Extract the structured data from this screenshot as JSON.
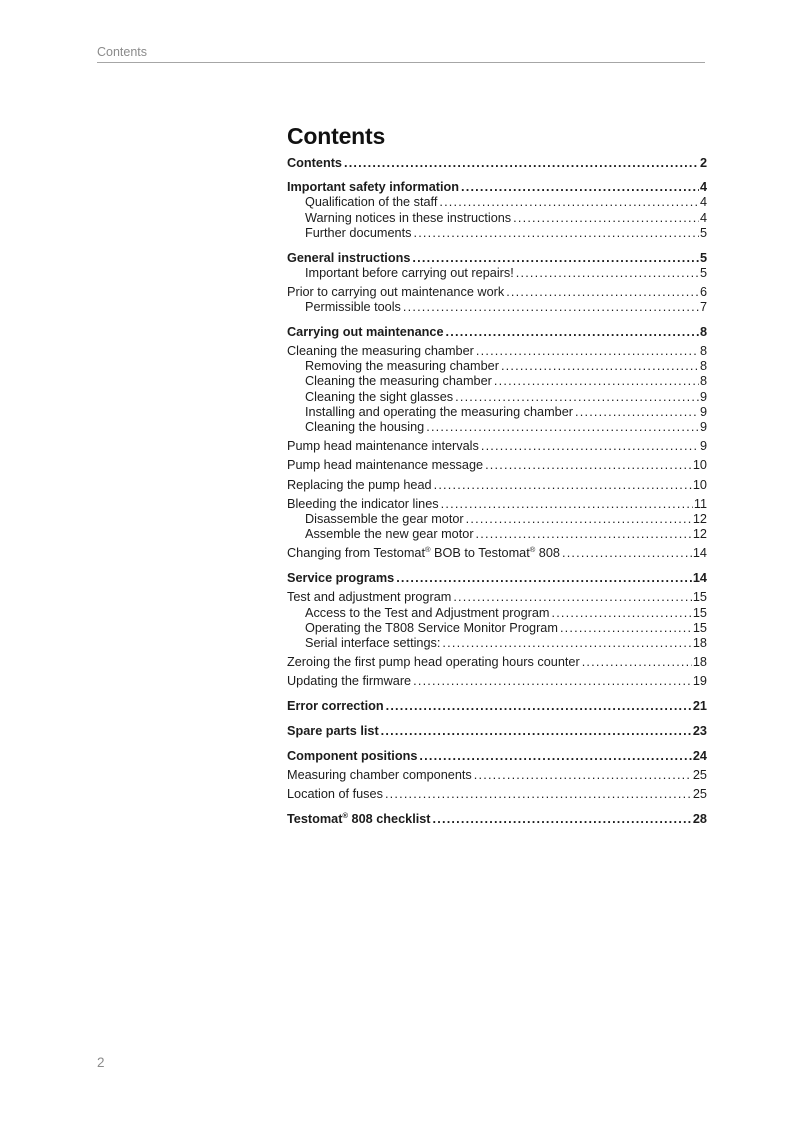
{
  "header": {
    "title": "Contents"
  },
  "title": "Contents",
  "footer": {
    "page_number": "2"
  },
  "colors": {
    "text": "#1c1c1c",
    "muted_gray": "#8b8b8b",
    "header_rule": "#a6a6a6",
    "background": "#ffffff"
  },
  "toc": {
    "entries": [
      {
        "label": "Contents",
        "page": "2",
        "style": "chapter"
      },
      {
        "label": "Important safety information",
        "page": "4",
        "style": "chapter"
      },
      {
        "label": "Qualification of the staff",
        "page": "4",
        "style": "sub"
      },
      {
        "label": "Warning notices in these instructions",
        "page": "4",
        "style": "sub"
      },
      {
        "label": "Further documents",
        "page": "5",
        "style": "sub"
      },
      {
        "label": "General instructions",
        "page": "5",
        "style": "chapter"
      },
      {
        "label": "Important before carrying out repairs!",
        "page": "5",
        "style": "sub"
      },
      {
        "label": "Prior to carrying out maintenance work",
        "page": "6",
        "style": "section"
      },
      {
        "label": "Permissible tools",
        "page": "7",
        "style": "sub"
      },
      {
        "label": "Carrying out maintenance",
        "page": "8",
        "style": "chapter"
      },
      {
        "label": "Cleaning the measuring chamber",
        "page": "8",
        "style": "section"
      },
      {
        "label": "Removing the measuring chamber",
        "page": "8",
        "style": "sub"
      },
      {
        "label": "Cleaning the measuring chamber",
        "page": "8",
        "style": "sub"
      },
      {
        "label": "Cleaning the sight glasses",
        "page": "9",
        "style": "sub"
      },
      {
        "label": "Installing and operating the measuring chamber",
        "page": "9",
        "style": "sub"
      },
      {
        "label": "Cleaning the housing",
        "page": "9",
        "style": "sub"
      },
      {
        "label": "Pump head maintenance intervals",
        "page": "9",
        "style": "section"
      },
      {
        "label": "Pump head maintenance message",
        "page": "10",
        "style": "section"
      },
      {
        "label": "Replacing the pump head",
        "page": "10",
        "style": "section"
      },
      {
        "label": "Bleeding the indicator lines",
        "page": "11",
        "style": "section"
      },
      {
        "label": "Disassemble the gear motor",
        "page": "12",
        "style": "sub"
      },
      {
        "label": "Assemble the new gear motor",
        "page": "12",
        "style": "sub"
      },
      {
        "label": "Changing from Testomat® BOB to Testomat® 808",
        "page": "14",
        "style": "section"
      },
      {
        "label": "Service programs",
        "page": "14",
        "style": "chapter"
      },
      {
        "label": "Test and adjustment program",
        "page": "15",
        "style": "section"
      },
      {
        "label": "Access to the Test and Adjustment program",
        "page": "15",
        "style": "sub"
      },
      {
        "label": "Operating the T808 Service Monitor Program",
        "page": "15",
        "style": "sub"
      },
      {
        "label": "Serial interface settings:",
        "page": "18",
        "style": "sub"
      },
      {
        "label": "Zeroing the first pump head operating hours counter",
        "page": "18",
        "style": "section"
      },
      {
        "label": "Updating the firmware",
        "page": "19",
        "style": "section"
      },
      {
        "label": "Error correction",
        "page": "21",
        "style": "chapter"
      },
      {
        "label": "Spare parts list",
        "page": "23",
        "style": "chapter"
      },
      {
        "label": "Component positions",
        "page": "24",
        "style": "chapter"
      },
      {
        "label": "Measuring chamber components",
        "page": "25",
        "style": "section"
      },
      {
        "label": "Location of fuses",
        "page": "25",
        "style": "section"
      },
      {
        "label": "Testomat® 808 checklist",
        "page": "28",
        "style": "chapter"
      }
    ]
  }
}
